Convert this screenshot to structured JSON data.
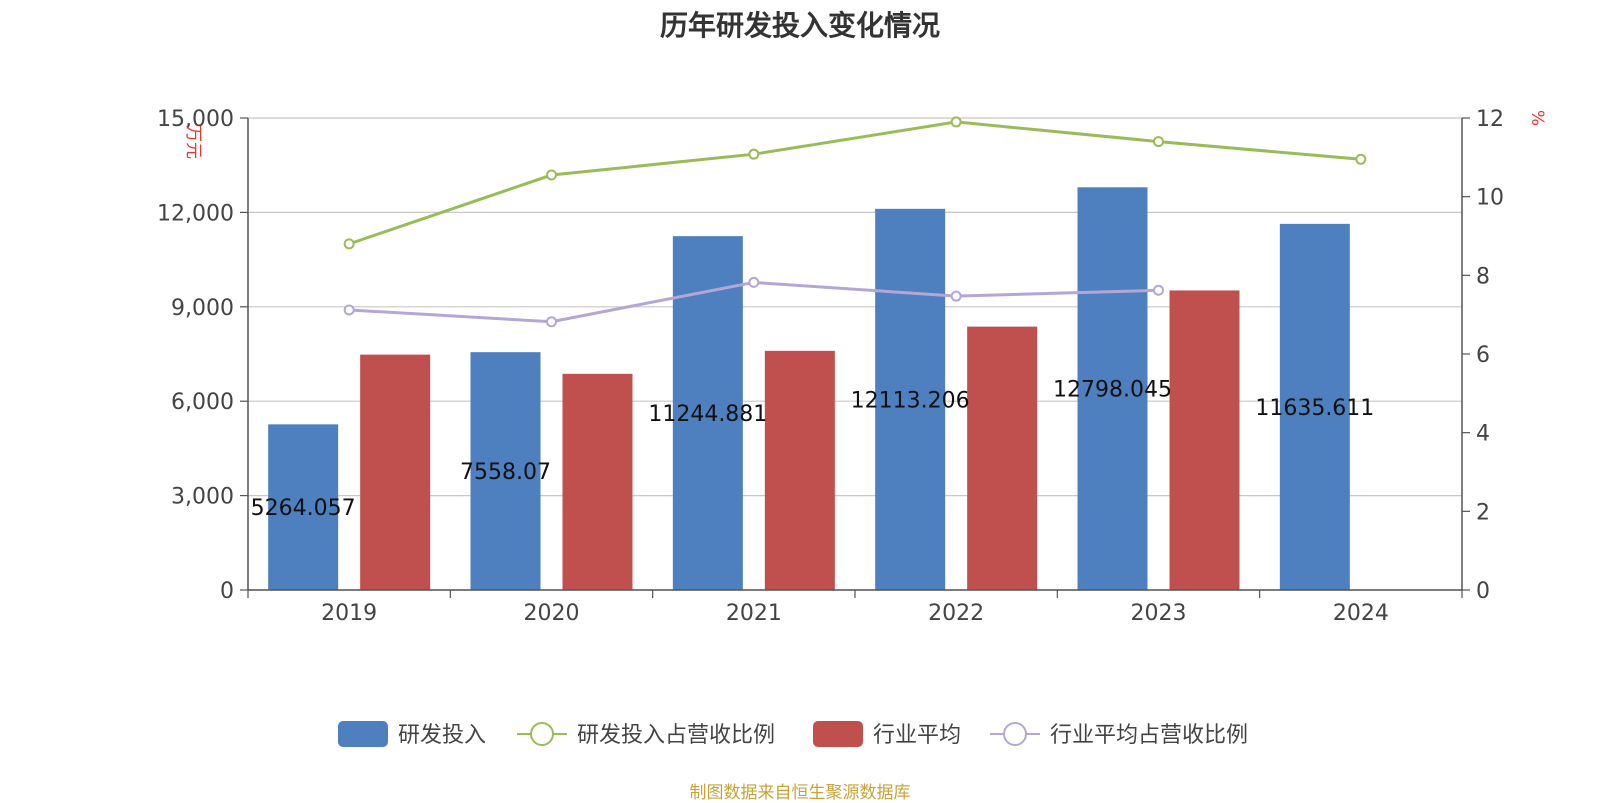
{
  "title": "历年研发投入变化情况",
  "source_note": "制图数据来自恒生聚源数据库",
  "chart_data": {
    "type": "bar",
    "categories": [
      "2019",
      "2020",
      "2021",
      "2022",
      "2023",
      "2024"
    ],
    "y_left": {
      "unit": "万元",
      "ylim": [
        0,
        15000
      ],
      "ticks": [
        "0",
        "3,000",
        "6,000",
        "9,000",
        "12,000",
        "15,000"
      ],
      "tick_values": [
        0,
        3000,
        6000,
        9000,
        12000,
        15000
      ]
    },
    "y_right": {
      "unit": "%",
      "ylim": [
        0,
        12
      ],
      "ticks": [
        "0",
        "2",
        "4",
        "6",
        "8",
        "10",
        "12"
      ],
      "tick_values": [
        0,
        2,
        4,
        6,
        8,
        10,
        12
      ]
    },
    "series": [
      {
        "name": "研发投入",
        "kind": "bar",
        "axis": "left",
        "color": "#4e7fbf",
        "values": [
          5264.057,
          7558.07,
          11244.881,
          12113.206,
          12798.045,
          11635.611
        ],
        "labels": [
          "5264.057",
          "7558.07",
          "11244.881",
          "12113.206",
          "12798.045",
          "11635.611"
        ]
      },
      {
        "name": "行业平均",
        "kind": "bar",
        "axis": "left",
        "color": "#c0504d",
        "values": [
          7480,
          6870,
          7600,
          8370,
          9520,
          null
        ]
      },
      {
        "name": "研发投入占营收比例",
        "kind": "line",
        "axis": "right",
        "color": "#9bbb59",
        "values": [
          8.8,
          10.55,
          11.08,
          11.9,
          11.4,
          10.95
        ]
      },
      {
        "name": "行业平均占营收比例",
        "kind": "line",
        "axis": "right",
        "color": "#b4a7d6",
        "values": [
          7.12,
          6.82,
          7.82,
          7.47,
          7.62,
          null
        ]
      }
    ],
    "grid": true,
    "legend_position": "bottom-center"
  }
}
